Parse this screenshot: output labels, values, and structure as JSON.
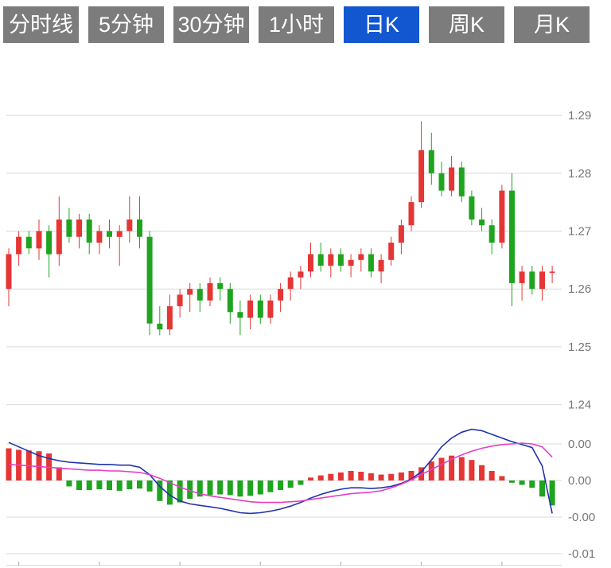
{
  "tabs": {
    "items": [
      {
        "label": "分时线",
        "selected": false
      },
      {
        "label": "5分钟",
        "selected": false
      },
      {
        "label": "30分钟",
        "selected": false
      },
      {
        "label": "1小时",
        "selected": false
      },
      {
        "label": "日K",
        "selected": true
      },
      {
        "label": "周K",
        "selected": false
      },
      {
        "label": "月K",
        "selected": false
      }
    ]
  },
  "colors": {
    "background": "#ffffff",
    "tab_bg": "#7c7c7c",
    "tab_selected_bg": "#1257d0",
    "tab_text": "#ffffff",
    "grid": "#d9d9d9",
    "axis_text": "#767676",
    "up": "#e53535",
    "down": "#1fa41f",
    "dif_line": "#2233aa",
    "dea_line": "#e43fc8"
  },
  "chart_data": [
    {
      "type": "candlestick",
      "note": "daily K-line, red = up, green = down",
      "y_axis": {
        "ticks": [
          {
            "value": 1.29,
            "label": "1.29"
          },
          {
            "value": 1.28,
            "label": "1.28"
          },
          {
            "value": 1.27,
            "label": "1.27"
          },
          {
            "value": 1.26,
            "label": "1.26"
          },
          {
            "value": 1.25,
            "label": "1.25"
          },
          {
            "value": 1.24,
            "label": "1.24"
          }
        ],
        "range": [
          1.2395,
          1.2995
        ]
      },
      "candles": [
        [
          1.26,
          1.267,
          1.257,
          1.266
        ],
        [
          1.266,
          1.27,
          1.264,
          1.269
        ],
        [
          1.269,
          1.27,
          1.266,
          1.267
        ],
        [
          1.267,
          1.272,
          1.265,
          1.27
        ],
        [
          1.27,
          1.271,
          1.262,
          1.266
        ],
        [
          1.266,
          1.276,
          1.264,
          1.272
        ],
        [
          1.272,
          1.274,
          1.268,
          1.269
        ],
        [
          1.269,
          1.273,
          1.267,
          1.272
        ],
        [
          1.272,
          1.273,
          1.266,
          1.268
        ],
        [
          1.268,
          1.271,
          1.266,
          1.27
        ],
        [
          1.27,
          1.272,
          1.267,
          1.269
        ],
        [
          1.269,
          1.271,
          1.264,
          1.27
        ],
        [
          1.27,
          1.276,
          1.268,
          1.272
        ],
        [
          1.272,
          1.276,
          1.267,
          1.269
        ],
        [
          1.269,
          1.27,
          1.252,
          1.254
        ],
        [
          1.254,
          1.257,
          1.252,
          1.253
        ],
        [
          1.253,
          1.259,
          1.252,
          1.257
        ],
        [
          1.257,
          1.26,
          1.255,
          1.259
        ],
        [
          1.259,
          1.261,
          1.256,
          1.26
        ],
        [
          1.26,
          1.261,
          1.256,
          1.258
        ],
        [
          1.258,
          1.262,
          1.257,
          1.261
        ],
        [
          1.261,
          1.262,
          1.258,
          1.26
        ],
        [
          1.26,
          1.261,
          1.254,
          1.256
        ],
        [
          1.256,
          1.258,
          1.252,
          1.255
        ],
        [
          1.255,
          1.259,
          1.253,
          1.258
        ],
        [
          1.258,
          1.259,
          1.254,
          1.255
        ],
        [
          1.255,
          1.259,
          1.254,
          1.258
        ],
        [
          1.258,
          1.261,
          1.256,
          1.26
        ],
        [
          1.26,
          1.263,
          1.258,
          1.262
        ],
        [
          1.262,
          1.264,
          1.26,
          1.263
        ],
        [
          1.263,
          1.268,
          1.262,
          1.266
        ],
        [
          1.266,
          1.268,
          1.263,
          1.264
        ],
        [
          1.264,
          1.267,
          1.262,
          1.266
        ],
        [
          1.266,
          1.267,
          1.263,
          1.264
        ],
        [
          1.264,
          1.266,
          1.262,
          1.265
        ],
        [
          1.265,
          1.267,
          1.263,
          1.266
        ],
        [
          1.266,
          1.267,
          1.262,
          1.263
        ],
        [
          1.263,
          1.266,
          1.261,
          1.265
        ],
        [
          1.265,
          1.269,
          1.264,
          1.268
        ],
        [
          1.268,
          1.272,
          1.266,
          1.271
        ],
        [
          1.271,
          1.276,
          1.27,
          1.275
        ],
        [
          1.275,
          1.289,
          1.274,
          1.284
        ],
        [
          1.284,
          1.287,
          1.278,
          1.28
        ],
        [
          1.28,
          1.282,
          1.276,
          1.277
        ],
        [
          1.277,
          1.283,
          1.276,
          1.281
        ],
        [
          1.281,
          1.282,
          1.275,
          1.276
        ],
        [
          1.276,
          1.277,
          1.271,
          1.272
        ],
        [
          1.272,
          1.274,
          1.27,
          1.271
        ],
        [
          1.271,
          1.272,
          1.266,
          1.268
        ],
        [
          1.268,
          1.278,
          1.267,
          1.277
        ],
        [
          1.277,
          1.28,
          1.257,
          1.261
        ],
        [
          1.261,
          1.264,
          1.258,
          1.263
        ],
        [
          1.263,
          1.264,
          1.259,
          1.26
        ],
        [
          1.26,
          1.264,
          1.258,
          1.263
        ],
        [
          1.263,
          1.264,
          1.261,
          1.263
        ]
      ]
    },
    {
      "type": "macd",
      "y_axis": {
        "ticks": [
          {
            "value": 0.005,
            "label": "0.00"
          },
          {
            "value": 0.0,
            "label": "0.00"
          },
          {
            "value": -0.005,
            "label": "-0.00"
          },
          {
            "value": -0.01,
            "label": "-0.01"
          }
        ],
        "range": [
          -0.012,
          0.0075
        ]
      },
      "histogram": [
        0.0044,
        0.0042,
        0.0041,
        0.004,
        0.0037,
        0.0018,
        -0.0008,
        -0.0013,
        -0.0013,
        -0.0012,
        -0.0013,
        -0.0014,
        -0.0012,
        -0.0011,
        -0.0015,
        -0.0028,
        -0.0033,
        -0.003,
        -0.0025,
        -0.0022,
        -0.002,
        -0.0019,
        -0.002,
        -0.0022,
        -0.0021,
        -0.0019,
        -0.0016,
        -0.0013,
        -0.001,
        -0.0006,
        0.0004,
        0.0007,
        0.0009,
        0.0011,
        0.0013,
        0.0012,
        0.001,
        0.0008,
        0.0009,
        0.0011,
        0.0013,
        0.0018,
        0.0026,
        0.0031,
        0.0034,
        0.0032,
        0.0028,
        0.0021,
        0.0013,
        0.0006,
        -0.0003,
        -0.0006,
        -0.001,
        -0.0022,
        -0.0034
      ],
      "dif": [
        0.0052,
        0.0046,
        0.004,
        0.0034,
        0.003,
        0.0027,
        0.0025,
        0.0024,
        0.0023,
        0.0022,
        0.0022,
        0.0021,
        0.0021,
        0.0018,
        0.0008,
        -0.0008,
        -0.002,
        -0.0028,
        -0.0032,
        -0.0034,
        -0.0036,
        -0.0038,
        -0.0041,
        -0.0044,
        -0.0045,
        -0.0044,
        -0.0042,
        -0.0039,
        -0.0035,
        -0.003,
        -0.0024,
        -0.0019,
        -0.0015,
        -0.0012,
        -0.001,
        -0.001,
        -0.0011,
        -0.001,
        -0.0008,
        -0.0004,
        0.0002,
        0.0012,
        0.0028,
        0.0046,
        0.0058,
        0.0066,
        0.007,
        0.0068,
        0.0063,
        0.0058,
        0.0053,
        0.0049,
        0.0045,
        0.002,
        -0.0045
      ],
      "dea": [
        0.0022,
        0.0021,
        0.002,
        0.0019,
        0.0018,
        0.0017,
        0.0016,
        0.0015,
        0.0014,
        0.0014,
        0.0013,
        0.0013,
        0.0012,
        0.0011,
        0.0008,
        0.0003,
        -0.0003,
        -0.0009,
        -0.0014,
        -0.0018,
        -0.0021,
        -0.0023,
        -0.0025,
        -0.0027,
        -0.0029,
        -0.003,
        -0.003,
        -0.003,
        -0.0029,
        -0.0028,
        -0.0026,
        -0.0024,
        -0.0022,
        -0.002,
        -0.0018,
        -0.0017,
        -0.0016,
        -0.0014,
        -0.001,
        -0.0005,
        0.0001,
        0.0008,
        0.0015,
        0.0022,
        0.0029,
        0.0035,
        0.004,
        0.0044,
        0.0047,
        0.0049,
        0.005,
        0.0051,
        0.005,
        0.0046,
        0.0032
      ]
    }
  ]
}
